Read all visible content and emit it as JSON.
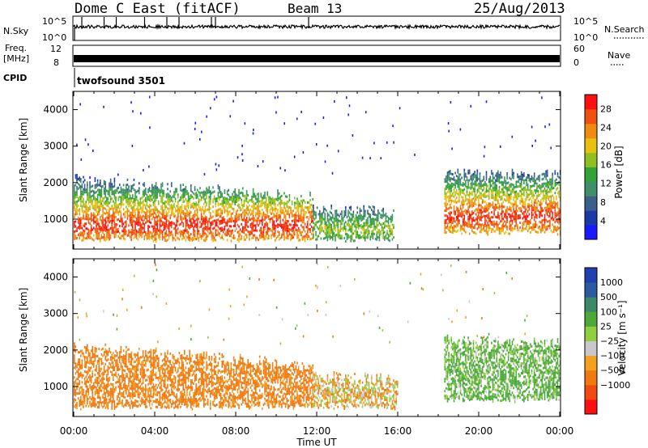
{
  "header": {
    "station": "Dome C East (fitACF)",
    "beam": "Beam 13",
    "date": "25/Aug/2013"
  },
  "status_panels": {
    "nsky_label": "N.Sky",
    "nsky_ticks": [
      "10^5",
      "10^0"
    ],
    "nsearch_label": "N.Search",
    "nsearch_ticks": [
      "10^5",
      "10^0"
    ],
    "freq_label": "Freq.",
    "freq_unit": "[MHz]",
    "freq_ticks": [
      "12",
      "8"
    ],
    "nave_label": "Nave",
    "nave_ticks": [
      "60",
      "0"
    ],
    "cpid_label": "CPID",
    "cpid_value": "twofsound 3501"
  },
  "colors": {
    "power_scale": [
      "#1a1aff",
      "#1a3aa8",
      "#3a5f8a",
      "#3f8f6a",
      "#33a23a",
      "#8fc020",
      "#e8c010",
      "#f08a10",
      "#f05010",
      "#ff1010"
    ],
    "velocity_scale": [
      "#ff1010",
      "#f24a10",
      "#f07a10",
      "#f5a020",
      "#c8c8c8",
      "#90d040",
      "#4caa3a",
      "#3a8a6a",
      "#2a5aa0",
      "#2040b0"
    ]
  },
  "chart_data": [
    {
      "type": "heatmap",
      "title": "",
      "ylabel": "Slant Range [km]",
      "xlabel": "",
      "x_range_hours": [
        0,
        24
      ],
      "ylim": [
        180,
        4500
      ],
      "yticks": [
        "1000",
        "2000",
        "3000",
        "4000"
      ],
      "colorbar": {
        "label": "Power [dB]",
        "ticks": [
          "4",
          "8",
          "12",
          "16",
          "20",
          "24",
          "28"
        ],
        "range": [
          0,
          31
        ]
      },
      "echo_regions": [
        {
          "start_hour": 0.0,
          "end_hour": 11.8,
          "min_range_km": 400,
          "max_range_km": 2100,
          "core_range_km": 850,
          "core_power_db": 29
        },
        {
          "start_hour": 11.8,
          "end_hour": 15.8,
          "min_range_km": 400,
          "max_range_km": 1300,
          "core_range_km": 750,
          "core_power_db": 18
        },
        {
          "start_hour": 18.3,
          "end_hour": 24.0,
          "min_range_km": 600,
          "max_range_km": 2300,
          "core_range_km": 1100,
          "core_power_db": 29
        }
      ]
    },
    {
      "type": "heatmap",
      "title": "",
      "ylabel": "Slant Range [km]",
      "xlabel": "Time UT",
      "x_range_hours": [
        0,
        24
      ],
      "xticks": [
        "00:00",
        "04:00",
        "08:00",
        "12:00",
        "16:00",
        "20:00",
        "00:00"
      ],
      "ylim": [
        180,
        4500
      ],
      "yticks": [
        "1000",
        "2000",
        "3000",
        "4000"
      ],
      "colorbar": {
        "label": "Velocity [m s⁻¹]",
        "ticks": [
          "1000",
          "500",
          "100",
          "25",
          "−25",
          "−100",
          "−500",
          "−1000"
        ]
      },
      "echo_regions": [
        {
          "start_hour": 0.0,
          "end_hour": 11.8,
          "min_range_km": 400,
          "max_range_km": 2100,
          "dominant_velocity_ms": -200
        },
        {
          "start_hour": 11.8,
          "end_hour": 16.0,
          "min_range_km": 400,
          "max_range_km": 1300,
          "dominant_velocity_ms": -50
        },
        {
          "start_hour": 18.3,
          "end_hour": 24.0,
          "min_range_km": 600,
          "max_range_km": 2300,
          "dominant_velocity_ms": 150
        }
      ]
    }
  ]
}
